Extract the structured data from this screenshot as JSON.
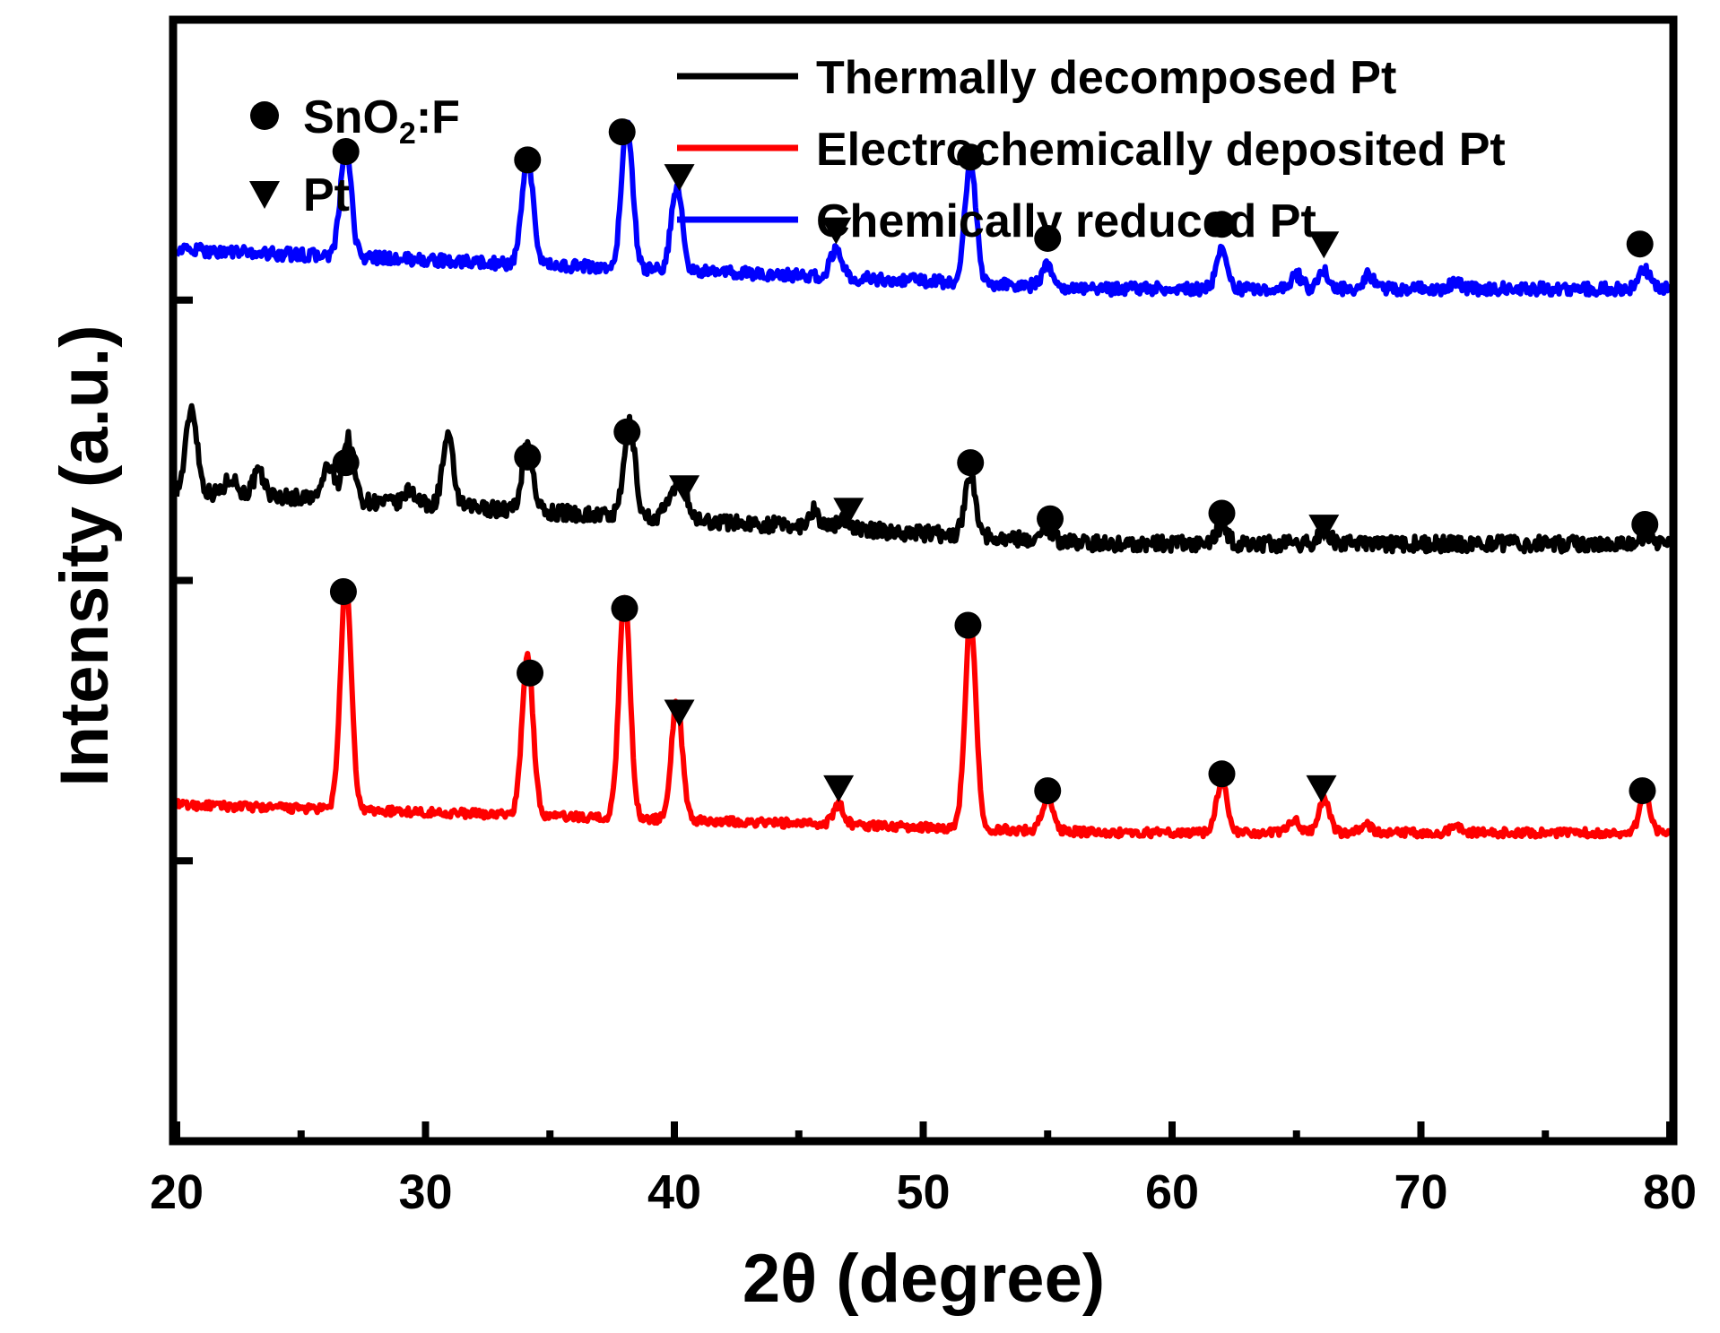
{
  "chart_data": {
    "type": "line",
    "xlabel": "2θ (degree)",
    "ylabel": "Intensity (a.u.)",
    "xlim": [
      20,
      80
    ],
    "ylim": [
      0,
      4
    ],
    "xticks": [
      20,
      30,
      40,
      50,
      60,
      70,
      80
    ],
    "xtick_labels": [
      "20",
      "30",
      "40",
      "50",
      "60",
      "70",
      "80"
    ],
    "yticks": [
      1,
      2,
      3,
      4
    ],
    "legend_position": "top-right",
    "series": [
      {
        "name": "Thermally decomposed Pt",
        "color": "#000000",
        "baseline": 2.13,
        "start_level": 2.32,
        "noise": 0.028,
        "peaks": [
          [
            20.6,
            0.3
          ],
          [
            22.2,
            0.06
          ],
          [
            23.3,
            0.08
          ],
          [
            26.1,
            0.12
          ],
          [
            26.9,
            0.22
          ],
          [
            29.4,
            0.05
          ],
          [
            30.9,
            0.24
          ],
          [
            34.1,
            0.24
          ],
          [
            38.2,
            0.33
          ],
          [
            39.8,
            0.06
          ],
          [
            40.3,
            0.14
          ],
          [
            45.6,
            0.06
          ],
          [
            46.8,
            0.04
          ],
          [
            51.9,
            0.22
          ],
          [
            55.0,
            0.04
          ],
          [
            62.0,
            0.06
          ],
          [
            66.1,
            0.05
          ],
          [
            79.0,
            0.03
          ]
        ]
      },
      {
        "name": "Electrochemically deposited Pt",
        "color": "#ff0000",
        "baseline": 1.1,
        "start_level": 1.2,
        "noise": 0.015,
        "peaks": [
          [
            26.8,
            0.8
          ],
          [
            34.1,
            0.57
          ],
          [
            38.0,
            0.8
          ],
          [
            40.1,
            0.42
          ],
          [
            46.6,
            0.07
          ],
          [
            51.9,
            0.74
          ],
          [
            55.0,
            0.12
          ],
          [
            62.0,
            0.18
          ],
          [
            64.9,
            0.05
          ],
          [
            66.1,
            0.12
          ],
          [
            67.8,
            0.03
          ],
          [
            71.4,
            0.02
          ],
          [
            79.0,
            0.13
          ]
        ]
      },
      {
        "name": "Chemically reduced Pt",
        "color": "#0000ff",
        "baseline": 3.04,
        "start_level": 3.18,
        "noise": 0.022,
        "peaks": [
          [
            26.8,
            0.38
          ],
          [
            34.1,
            0.38
          ],
          [
            38.1,
            0.52
          ],
          [
            40.1,
            0.3
          ],
          [
            46.5,
            0.1
          ],
          [
            51.9,
            0.44
          ],
          [
            55.0,
            0.07
          ],
          [
            62.0,
            0.14
          ],
          [
            65.0,
            0.05
          ],
          [
            66.1,
            0.06
          ],
          [
            67.9,
            0.05
          ],
          [
            71.4,
            0.02
          ],
          [
            79.0,
            0.07
          ]
        ]
      }
    ],
    "marker_legend": [
      {
        "marker": "circle",
        "label_main": "SnO",
        "label_sub": "2",
        "label_rest": ":F"
      },
      {
        "marker": "triangle",
        "label": "Pt"
      }
    ],
    "markers": [
      {
        "series": "Chemically reduced Pt",
        "type": "circle",
        "x": 26.8,
        "y": 3.53
      },
      {
        "series": "Chemically reduced Pt",
        "type": "circle",
        "x": 34.1,
        "y": 3.5
      },
      {
        "series": "Chemically reduced Pt",
        "type": "circle",
        "x": 37.9,
        "y": 3.6
      },
      {
        "series": "Chemically reduced Pt",
        "type": "triangle",
        "x": 40.2,
        "y": 3.44
      },
      {
        "series": "Chemically reduced Pt",
        "type": "triangle",
        "x": 46.5,
        "y": 3.25
      },
      {
        "series": "Chemically reduced Pt",
        "type": "circle",
        "x": 51.9,
        "y": 3.51
      },
      {
        "series": "Chemically reduced Pt",
        "type": "circle",
        "x": 55.0,
        "y": 3.22
      },
      {
        "series": "Chemically reduced Pt",
        "type": "circle",
        "x": 62.0,
        "y": 3.27
      },
      {
        "series": "Chemically reduced Pt",
        "type": "triangle",
        "x": 66.1,
        "y": 3.2
      },
      {
        "series": "Chemically reduced Pt",
        "type": "circle",
        "x": 78.8,
        "y": 3.2
      },
      {
        "series": "Thermally decomposed Pt",
        "type": "circle",
        "x": 26.8,
        "y": 2.42
      },
      {
        "series": "Thermally decomposed Pt",
        "type": "circle",
        "x": 34.1,
        "y": 2.44
      },
      {
        "series": "Thermally decomposed Pt",
        "type": "circle",
        "x": 38.1,
        "y": 2.53
      },
      {
        "series": "Thermally decomposed Pt",
        "type": "triangle",
        "x": 40.4,
        "y": 2.33
      },
      {
        "series": "Thermally decomposed Pt",
        "type": "triangle",
        "x": 47.0,
        "y": 2.25
      },
      {
        "series": "Thermally decomposed Pt",
        "type": "circle",
        "x": 51.9,
        "y": 2.42
      },
      {
        "series": "Thermally decomposed Pt",
        "type": "circle",
        "x": 55.1,
        "y": 2.22
      },
      {
        "series": "Thermally decomposed Pt",
        "type": "circle",
        "x": 62.0,
        "y": 2.24
      },
      {
        "series": "Thermally decomposed Pt",
        "type": "triangle",
        "x": 66.1,
        "y": 2.19
      },
      {
        "series": "Thermally decomposed Pt",
        "type": "circle",
        "x": 79.0,
        "y": 2.2
      },
      {
        "series": "Electrochemically deposited Pt",
        "type": "circle",
        "x": 26.7,
        "y": 1.96
      },
      {
        "series": "Electrochemically deposited Pt",
        "type": "circle",
        "x": 34.2,
        "y": 1.67
      },
      {
        "series": "Electrochemically deposited Pt",
        "type": "circle",
        "x": 38.0,
        "y": 1.9
      },
      {
        "series": "Electrochemically deposited Pt",
        "type": "triangle",
        "x": 40.2,
        "y": 1.53
      },
      {
        "series": "Electrochemically deposited Pt",
        "type": "triangle",
        "x": 46.6,
        "y": 1.26
      },
      {
        "series": "Electrochemically deposited Pt",
        "type": "circle",
        "x": 51.8,
        "y": 1.84
      },
      {
        "series": "Electrochemically deposited Pt",
        "type": "circle",
        "x": 55.0,
        "y": 1.25
      },
      {
        "series": "Electrochemically deposited Pt",
        "type": "circle",
        "x": 62.0,
        "y": 1.31
      },
      {
        "series": "Electrochemically deposited Pt",
        "type": "triangle",
        "x": 66.0,
        "y": 1.26
      },
      {
        "series": "Electrochemically deposited Pt",
        "type": "circle",
        "x": 78.9,
        "y": 1.25
      }
    ]
  }
}
